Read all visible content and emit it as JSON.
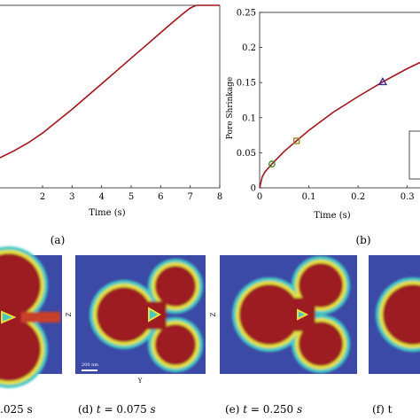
{
  "chart_data": [
    {
      "type": "line",
      "panel_label": "(a)",
      "xlabel": "Time (s)",
      "ylabel": "",
      "xlim": [
        0.5,
        8
      ],
      "ylim": [
        0,
        1
      ],
      "x_ticks": [
        "2",
        "3",
        "4",
        "5",
        "6",
        "7",
        "8"
      ],
      "x_tick_values": [
        2,
        3,
        4,
        5,
        6,
        7,
        8
      ],
      "grid": false,
      "series": [
        {
          "color": "#a0151b",
          "x": [
            0.5,
            1.0,
            1.5,
            2.0,
            2.5,
            3.0,
            3.5,
            4.0,
            4.5,
            5.0,
            5.5,
            6.0,
            6.5,
            6.8,
            7.0,
            7.2,
            8.0
          ],
          "y": [
            0.16,
            0.2,
            0.245,
            0.3,
            0.365,
            0.43,
            0.5,
            0.57,
            0.64,
            0.71,
            0.78,
            0.85,
            0.92,
            0.96,
            0.985,
            1.0,
            1.0
          ]
        }
      ]
    },
    {
      "type": "line",
      "panel_label": "(b)",
      "xlabel": "Time (s)",
      "ylabel": "Pore Shrinkage",
      "xlim": [
        0,
        0.36
      ],
      "ylim": [
        0,
        0.25
      ],
      "x_ticks": [
        "0",
        "0.1",
        "0.2",
        "0.3"
      ],
      "x_tick_values": [
        0,
        0.1,
        0.2,
        0.3
      ],
      "y_ticks": [
        "0",
        "0.05",
        "0.1",
        "0.15",
        "0.2",
        "0.25"
      ],
      "y_tick_values": [
        0,
        0.05,
        0.1,
        0.15,
        0.2,
        0.25
      ],
      "grid": false,
      "series": [
        {
          "color": "#a0151b",
          "x": [
            0,
            0.005,
            0.01,
            0.025,
            0.05,
            0.075,
            0.1,
            0.15,
            0.2,
            0.25,
            0.3,
            0.36
          ],
          "y": [
            0,
            0.015,
            0.022,
            0.034,
            0.052,
            0.067,
            0.082,
            0.108,
            0.13,
            0.151,
            0.17,
            0.19
          ]
        }
      ],
      "markers": [
        {
          "shape": "circle",
          "x": 0.025,
          "y": 0.034,
          "color": "#3c8c2a"
        },
        {
          "shape": "square",
          "x": 0.075,
          "y": 0.067,
          "color": "#9a8a1c"
        },
        {
          "shape": "triangle",
          "x": 0.25,
          "y": 0.151,
          "color": "#3a2a8a"
        }
      ]
    }
  ],
  "labels": {
    "panel_a": "(a)",
    "panel_b": "(b)",
    "time_axis_a": "Time (s)",
    "time_axis_b": "Time (s)",
    "pore_axis": "Pore Shrinkage"
  },
  "images": {
    "axis_z": "Z",
    "axis_y": "Y",
    "scale_bar": "200 nm",
    "captions": {
      "c": ".025 s",
      "d": "(d) t = 0.075 s",
      "e": "(e) t = 0.250 s",
      "f": "(f) t"
    }
  },
  "colors": {
    "field_background": "#3b4aa6",
    "particle_fill": "#9c1a23",
    "boundary_yellow": "#e6e040",
    "boundary_cyan": "#45c9c4"
  }
}
